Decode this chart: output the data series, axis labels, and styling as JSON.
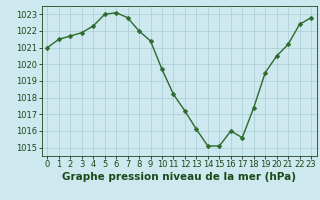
{
  "x": [
    0,
    1,
    2,
    3,
    4,
    5,
    6,
    7,
    8,
    9,
    10,
    11,
    12,
    13,
    14,
    15,
    16,
    17,
    18,
    19,
    20,
    21,
    22,
    23
  ],
  "y": [
    1021.0,
    1021.5,
    1021.7,
    1021.9,
    1022.3,
    1023.0,
    1023.1,
    1022.8,
    1022.0,
    1021.4,
    1019.7,
    1018.2,
    1017.2,
    1016.1,
    1015.1,
    1015.1,
    1016.0,
    1015.6,
    1017.4,
    1019.5,
    1020.5,
    1021.2,
    1022.4,
    1022.8
  ],
  "line_color": "#2d6a2d",
  "marker": "D",
  "marker_size": 2.5,
  "bg_color": "#cde8ee",
  "grid_color": "#aaccd4",
  "xlabel": "Graphe pression niveau de la mer (hPa)",
  "xlabel_color": "#1a4a1a",
  "xlabel_fontsize": 7.5,
  "ylabel_ticks": [
    1015,
    1016,
    1017,
    1018,
    1019,
    1020,
    1021,
    1022,
    1023
  ],
  "xlim": [
    -0.5,
    23.5
  ],
  "ylim": [
    1014.5,
    1023.5
  ],
  "xtick_labels": [
    "0",
    "1",
    "2",
    "3",
    "4",
    "5",
    "6",
    "7",
    "8",
    "9",
    "10",
    "11",
    "12",
    "13",
    "14",
    "15",
    "16",
    "17",
    "18",
    "19",
    "20",
    "21",
    "22",
    "23"
  ],
  "tick_color": "#1a4a1a",
  "tick_fontsize": 6.0,
  "line_width": 1.0
}
